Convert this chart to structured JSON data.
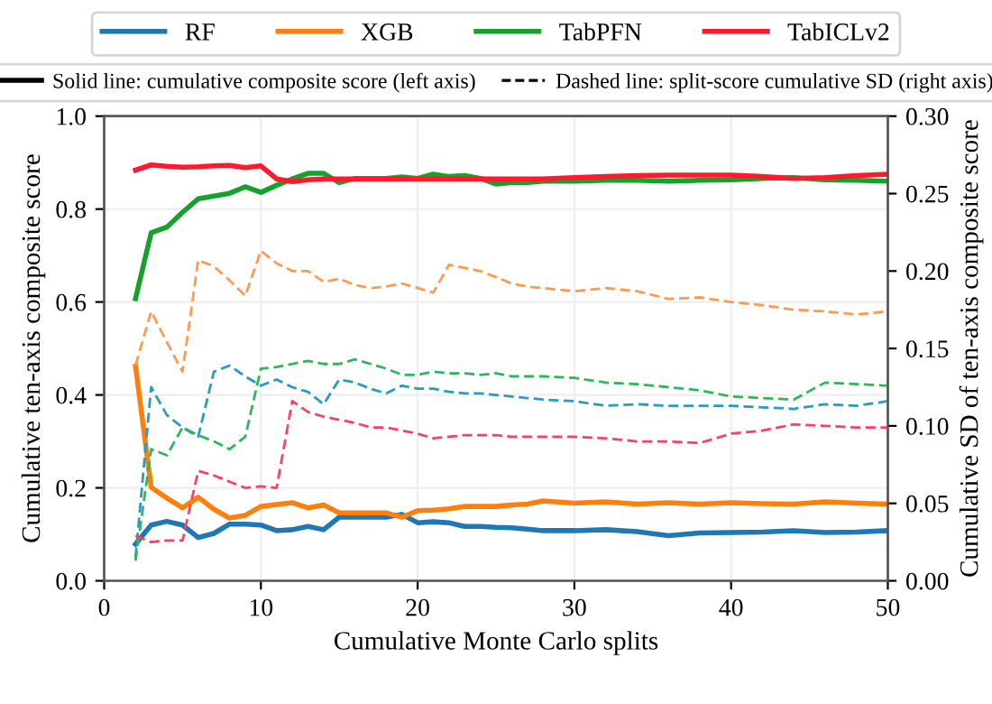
{
  "chart_data": {
    "type": "line",
    "xlabel": "Cumulative Monte Carlo splits",
    "ylabel": "Cumulative ten-axis composite score",
    "y2label": "Cumulative SD of ten-axis composite score",
    "x": [
      2,
      3,
      4,
      5,
      6,
      7,
      8,
      9,
      10,
      11,
      12,
      13,
      14,
      15,
      16,
      17,
      18,
      19,
      20,
      21,
      22,
      23,
      24,
      25,
      26,
      27,
      28,
      30,
      32,
      34,
      36,
      38,
      40,
      42,
      44,
      46,
      48,
      50
    ],
    "series": [
      {
        "name": "RF",
        "color": "#1f78b4",
        "line_style": "solid",
        "values": [
          0.079,
          0.12,
          0.128,
          0.12,
          0.093,
          0.102,
          0.122,
          0.122,
          0.12,
          0.108,
          0.11,
          0.117,
          0.11,
          0.137,
          0.137,
          0.137,
          0.137,
          0.143,
          0.125,
          0.127,
          0.125,
          0.117,
          0.117,
          0.115,
          0.114,
          0.111,
          0.108,
          0.108,
          0.11,
          0.106,
          0.097,
          0.103,
          0.104,
          0.105,
          0.108,
          0.104,
          0.105,
          0.108
        ]
      },
      {
        "name": "XGB",
        "color": "#ff7f0e",
        "line_style": "solid",
        "values": [
          0.462,
          0.201,
          0.178,
          0.157,
          0.18,
          0.154,
          0.135,
          0.141,
          0.16,
          0.164,
          0.168,
          0.157,
          0.163,
          0.146,
          0.146,
          0.146,
          0.146,
          0.137,
          0.151,
          0.152,
          0.155,
          0.16,
          0.16,
          0.16,
          0.163,
          0.165,
          0.172,
          0.167,
          0.17,
          0.165,
          0.168,
          0.165,
          0.168,
          0.166,
          0.165,
          0.17,
          0.167,
          0.165
        ]
      },
      {
        "name": "TabPFN",
        "color": "#16a02c",
        "line_style": "solid",
        "values": [
          0.607,
          0.749,
          0.761,
          0.793,
          0.822,
          0.828,
          0.834,
          0.848,
          0.836,
          0.851,
          0.865,
          0.877,
          0.877,
          0.857,
          0.866,
          0.866,
          0.866,
          0.869,
          0.866,
          0.875,
          0.87,
          0.872,
          0.866,
          0.854,
          0.857,
          0.857,
          0.86,
          0.86,
          0.862,
          0.862,
          0.86,
          0.862,
          0.863,
          0.866,
          0.868,
          0.863,
          0.862,
          0.86
        ]
      },
      {
        "name": "TabICLv2",
        "color": "#ff1a2e",
        "line_style": "solid",
        "values": [
          0.884,
          0.895,
          0.892,
          0.89,
          0.891,
          0.893,
          0.894,
          0.889,
          0.893,
          0.865,
          0.859,
          0.863,
          0.865,
          0.865,
          0.865,
          0.865,
          0.865,
          0.865,
          0.865,
          0.865,
          0.865,
          0.865,
          0.865,
          0.865,
          0.865,
          0.865,
          0.865,
          0.868,
          0.87,
          0.872,
          0.873,
          0.873,
          0.873,
          0.87,
          0.866,
          0.868,
          0.872,
          0.875
        ]
      },
      {
        "color": "#2a9bc0",
        "line_style": "dashed",
        "axis": "y2",
        "values": [
          0.015,
          0.125,
          0.107,
          0.099,
          0.093,
          0.135,
          0.139,
          0.132,
          0.126,
          0.13,
          0.125,
          0.122,
          0.114,
          0.13,
          0.128,
          0.124,
          0.121,
          0.126,
          0.124,
          0.124,
          0.122,
          0.121,
          0.121,
          0.12,
          0.119,
          0.118,
          0.117,
          0.116,
          0.113,
          0.114,
          0.113,
          0.113,
          0.113,
          0.112,
          0.111,
          0.114,
          0.113,
          0.116
        ]
      },
      {
        "color": "#ff9a50",
        "line_style": "dashed",
        "axis": "y2",
        "values": [
          0.139,
          0.174,
          0.154,
          0.135,
          0.207,
          0.203,
          0.194,
          0.184,
          0.213,
          0.205,
          0.2,
          0.2,
          0.193,
          0.195,
          0.191,
          0.189,
          0.19,
          0.192,
          0.189,
          0.186,
          0.204,
          0.202,
          0.2,
          0.196,
          0.192,
          0.19,
          0.189,
          0.187,
          0.189,
          0.187,
          0.182,
          0.183,
          0.18,
          0.178,
          0.175,
          0.174,
          0.172,
          0.174
        ]
      },
      {
        "color": "#2cb85a",
        "line_style": "dashed",
        "axis": "y2",
        "values": [
          0.013,
          0.085,
          0.081,
          0.099,
          0.094,
          0.09,
          0.085,
          0.093,
          0.137,
          0.138,
          0.14,
          0.142,
          0.14,
          0.14,
          0.143,
          0.14,
          0.137,
          0.133,
          0.133,
          0.135,
          0.134,
          0.134,
          0.133,
          0.134,
          0.132,
          0.132,
          0.132,
          0.131,
          0.128,
          0.127,
          0.125,
          0.123,
          0.119,
          0.118,
          0.117,
          0.128,
          0.127,
          0.126
        ]
      },
      {
        "color": "#ff4060",
        "line_style": "dashed",
        "axis": "y2",
        "values": [
          0.029,
          0.025,
          0.026,
          0.026,
          0.071,
          0.068,
          0.064,
          0.06,
          0.061,
          0.06,
          0.116,
          0.109,
          0.106,
          0.104,
          0.102,
          0.099,
          0.099,
          0.097,
          0.095,
          0.092,
          0.093,
          0.094,
          0.094,
          0.094,
          0.093,
          0.093,
          0.093,
          0.093,
          0.092,
          0.09,
          0.09,
          0.089,
          0.095,
          0.097,
          0.101,
          0.1,
          0.099,
          0.099
        ]
      }
    ],
    "xlim": [
      0,
      50
    ],
    "xticks": [
      0,
      10,
      20,
      30,
      40,
      50
    ],
    "ylim": [
      0,
      1
    ],
    "yticks": [
      {
        "value": 0,
        "label": "0.0"
      },
      {
        "value": 0.2,
        "label": "0.2"
      },
      {
        "value": 0.4,
        "label": "0.4"
      },
      {
        "value": 0.6,
        "label": "0.6"
      },
      {
        "value": 0.8,
        "label": "0.8"
      },
      {
        "value": 1,
        "label": "1.0"
      }
    ],
    "y2lim": [
      0,
      0.3
    ],
    "y2ticks": [
      {
        "value": 0,
        "label": "0.00"
      },
      {
        "value": 0.05,
        "label": "0.05"
      },
      {
        "value": 0.1,
        "label": "0.10"
      },
      {
        "value": 0.15,
        "label": "0.15"
      },
      {
        "value": 0.2,
        "label": "0.20"
      },
      {
        "value": 0.25,
        "label": "0.25"
      },
      {
        "value": 0.3,
        "label": "0.30"
      }
    ],
    "annotations": [
      "Solid line: cumulative composite score (left axis)",
      "Dashed line: split-score cumulative SD (right axis)"
    ],
    "grid": true,
    "legend": "top",
    "marker": "none"
  }
}
